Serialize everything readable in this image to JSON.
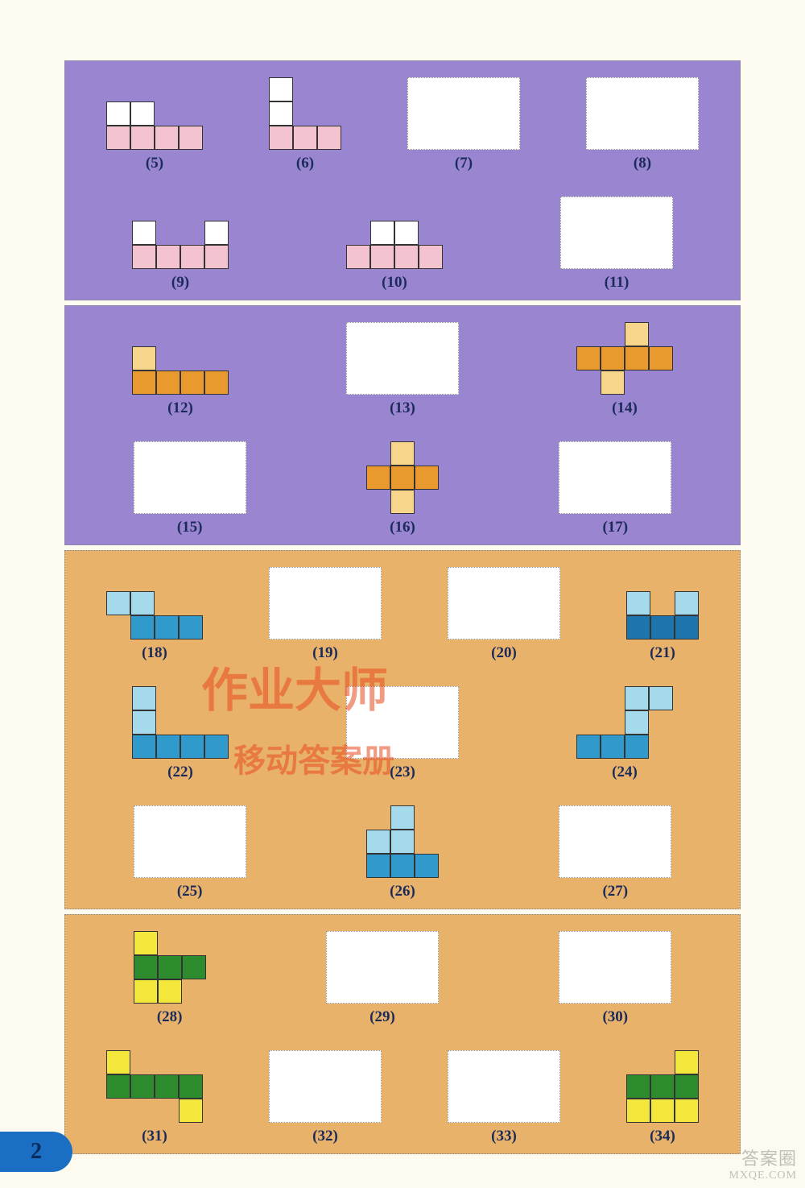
{
  "page_number": "2",
  "watermark": {
    "line1": "作业大师",
    "line2": "移动答案册",
    "color": "#e94b1f",
    "fontsize_main": 58,
    "fontsize_sub": 40
  },
  "corner": {
    "line1": "答案圈",
    "line2": "MXQE.COM"
  },
  "unit": 30,
  "blank_box": {
    "w": 140,
    "h": 90,
    "bg": "#ffffff"
  },
  "colors": {
    "white": "#ffffff",
    "pink": "#f3c3d0",
    "orange": "#e89a2e",
    "orange_light": "#f7d58a",
    "lblue": "#a5d9ec",
    "mblue": "#2f9acb",
    "dblue": "#1e74ad",
    "yellow": "#f2e73a",
    "green": "#2d8c2d"
  },
  "sections": [
    {
      "bg": "#9a86d0",
      "rows": [
        [
          {
            "label": "(5)",
            "unit": 30,
            "w": 4,
            "h": 2,
            "cells": [
              {
                "x": 0,
                "y": 0,
                "c": "white"
              },
              {
                "x": 1,
                "y": 0,
                "c": "white"
              },
              {
                "x": 0,
                "y": 1,
                "c": "pink"
              },
              {
                "x": 1,
                "y": 1,
                "c": "pink"
              },
              {
                "x": 2,
                "y": 1,
                "c": "pink"
              },
              {
                "x": 3,
                "y": 1,
                "c": "pink"
              }
            ]
          },
          {
            "label": "(6)",
            "unit": 30,
            "w": 3,
            "h": 3,
            "cells": [
              {
                "x": 0,
                "y": 0,
                "c": "white"
              },
              {
                "x": 0,
                "y": 1,
                "c": "white"
              },
              {
                "x": 0,
                "y": 2,
                "c": "pink"
              },
              {
                "x": 1,
                "y": 2,
                "c": "pink"
              },
              {
                "x": 2,
                "y": 2,
                "c": "pink"
              }
            ]
          },
          {
            "label": "(7)",
            "blank": true
          },
          {
            "label": "(8)",
            "blank": true
          }
        ],
        [
          {
            "label": "(9)",
            "unit": 30,
            "w": 4,
            "h": 2,
            "cells": [
              {
                "x": 0,
                "y": 0,
                "c": "white"
              },
              {
                "x": 3,
                "y": 0,
                "c": "white"
              },
              {
                "x": 0,
                "y": 1,
                "c": "pink"
              },
              {
                "x": 1,
                "y": 1,
                "c": "pink"
              },
              {
                "x": 2,
                "y": 1,
                "c": "pink"
              },
              {
                "x": 3,
                "y": 1,
                "c": "pink"
              }
            ]
          },
          {
            "label": "(10)",
            "unit": 30,
            "w": 4,
            "h": 2,
            "cells": [
              {
                "x": 1,
                "y": 0,
                "c": "white"
              },
              {
                "x": 2,
                "y": 0,
                "c": "white"
              },
              {
                "x": 0,
                "y": 1,
                "c": "pink"
              },
              {
                "x": 1,
                "y": 1,
                "c": "pink"
              },
              {
                "x": 2,
                "y": 1,
                "c": "pink"
              },
              {
                "x": 3,
                "y": 1,
                "c": "pink"
              }
            ]
          },
          {
            "label": "(11)",
            "blank": true
          }
        ]
      ]
    },
    {
      "bg": "#9a86d0",
      "rows": [
        [
          {
            "label": "(12)",
            "unit": 30,
            "w": 4,
            "h": 2,
            "cells": [
              {
                "x": 0,
                "y": 0,
                "c": "orange_light"
              },
              {
                "x": 0,
                "y": 1,
                "c": "orange"
              },
              {
                "x": 1,
                "y": 1,
                "c": "orange"
              },
              {
                "x": 2,
                "y": 1,
                "c": "orange"
              },
              {
                "x": 3,
                "y": 1,
                "c": "orange"
              }
            ]
          },
          {
            "label": "(13)",
            "blank": true
          },
          {
            "label": "(14)",
            "unit": 30,
            "w": 4,
            "h": 3,
            "cells": [
              {
                "x": 2,
                "y": 0,
                "c": "orange_light"
              },
              {
                "x": 0,
                "y": 1,
                "c": "orange"
              },
              {
                "x": 1,
                "y": 1,
                "c": "orange"
              },
              {
                "x": 2,
                "y": 1,
                "c": "orange"
              },
              {
                "x": 3,
                "y": 1,
                "c": "orange"
              },
              {
                "x": 1,
                "y": 2,
                "c": "orange_light"
              }
            ]
          }
        ],
        [
          {
            "label": "(15)",
            "blank": true
          },
          {
            "label": "(16)",
            "unit": 30,
            "w": 3,
            "h": 3,
            "cells": [
              {
                "x": 1,
                "y": 0,
                "c": "orange_light"
              },
              {
                "x": 0,
                "y": 1,
                "c": "orange"
              },
              {
                "x": 1,
                "y": 1,
                "c": "orange"
              },
              {
                "x": 2,
                "y": 1,
                "c": "orange"
              },
              {
                "x": 1,
                "y": 2,
                "c": "orange_light"
              }
            ]
          },
          {
            "label": "(17)",
            "blank": true
          }
        ]
      ]
    },
    {
      "bg": "#e8b26a",
      "rows": [
        [
          {
            "label": "(18)",
            "unit": 30,
            "w": 4,
            "h": 2,
            "cells": [
              {
                "x": 0,
                "y": 0,
                "c": "lblue"
              },
              {
                "x": 1,
                "y": 0,
                "c": "lblue"
              },
              {
                "x": 1,
                "y": 1,
                "c": "mblue"
              },
              {
                "x": 2,
                "y": 1,
                "c": "mblue"
              },
              {
                "x": 3,
                "y": 1,
                "c": "mblue"
              }
            ]
          },
          {
            "label": "(19)",
            "blank": true
          },
          {
            "label": "(20)",
            "blank": true
          },
          {
            "label": "(21)",
            "unit": 30,
            "w": 3,
            "h": 2,
            "cells": [
              {
                "x": 0,
                "y": 0,
                "c": "lblue"
              },
              {
                "x": 2,
                "y": 0,
                "c": "lblue"
              },
              {
                "x": 0,
                "y": 1,
                "c": "dblue"
              },
              {
                "x": 1,
                "y": 1,
                "c": "dblue"
              },
              {
                "x": 2,
                "y": 1,
                "c": "dblue"
              }
            ]
          }
        ],
        [
          {
            "label": "(22)",
            "unit": 30,
            "w": 4,
            "h": 3,
            "cells": [
              {
                "x": 0,
                "y": 0,
                "c": "lblue"
              },
              {
                "x": 0,
                "y": 1,
                "c": "lblue"
              },
              {
                "x": 0,
                "y": 2,
                "c": "mblue"
              },
              {
                "x": 1,
                "y": 2,
                "c": "mblue"
              },
              {
                "x": 2,
                "y": 2,
                "c": "mblue"
              },
              {
                "x": 3,
                "y": 2,
                "c": "mblue"
              }
            ]
          },
          {
            "label": "(23)",
            "blank": true
          },
          {
            "label": "(24)",
            "unit": 30,
            "w": 4,
            "h": 3,
            "cells": [
              {
                "x": 2,
                "y": 0,
                "c": "lblue"
              },
              {
                "x": 3,
                "y": 0,
                "c": "lblue"
              },
              {
                "x": 2,
                "y": 1,
                "c": "lblue"
              },
              {
                "x": 0,
                "y": 2,
                "c": "mblue"
              },
              {
                "x": 1,
                "y": 2,
                "c": "mblue"
              },
              {
                "x": 2,
                "y": 2,
                "c": "mblue"
              }
            ]
          }
        ],
        [
          {
            "label": "(25)",
            "blank": true
          },
          {
            "label": "(26)",
            "unit": 30,
            "w": 3,
            "h": 3,
            "cells": [
              {
                "x": 1,
                "y": 0,
                "c": "lblue"
              },
              {
                "x": 0,
                "y": 1,
                "c": "lblue"
              },
              {
                "x": 1,
                "y": 1,
                "c": "lblue"
              },
              {
                "x": 0,
                "y": 2,
                "c": "mblue"
              },
              {
                "x": 1,
                "y": 2,
                "c": "mblue"
              },
              {
                "x": 2,
                "y": 2,
                "c": "mblue"
              }
            ]
          },
          {
            "label": "(27)",
            "blank": true
          }
        ]
      ]
    },
    {
      "bg": "#e8b26a",
      "rows": [
        [
          {
            "label": "(28)",
            "unit": 30,
            "w": 3,
            "h": 3,
            "cells": [
              {
                "x": 0,
                "y": 0,
                "c": "yellow"
              },
              {
                "x": 0,
                "y": 1,
                "c": "green"
              },
              {
                "x": 1,
                "y": 1,
                "c": "green"
              },
              {
                "x": 2,
                "y": 1,
                "c": "green"
              },
              {
                "x": 0,
                "y": 2,
                "c": "yellow"
              },
              {
                "x": 1,
                "y": 2,
                "c": "yellow"
              }
            ]
          },
          {
            "label": "(29)",
            "blank": true
          },
          {
            "label": "(30)",
            "blank": true
          }
        ],
        [
          {
            "label": "(31)",
            "unit": 30,
            "w": 4,
            "h": 3,
            "cells": [
              {
                "x": 0,
                "y": 0,
                "c": "yellow"
              },
              {
                "x": 0,
                "y": 1,
                "c": "green"
              },
              {
                "x": 1,
                "y": 1,
                "c": "green"
              },
              {
                "x": 2,
                "y": 1,
                "c": "green"
              },
              {
                "x": 3,
                "y": 1,
                "c": "green"
              },
              {
                "x": 3,
                "y": 2,
                "c": "yellow"
              }
            ]
          },
          {
            "label": "(32)",
            "blank": true
          },
          {
            "label": "(33)",
            "blank": true
          },
          {
            "label": "(34)",
            "unit": 30,
            "w": 3,
            "h": 3,
            "cells": [
              {
                "x": 2,
                "y": 0,
                "c": "yellow"
              },
              {
                "x": 0,
                "y": 1,
                "c": "green"
              },
              {
                "x": 1,
                "y": 1,
                "c": "green"
              },
              {
                "x": 2,
                "y": 1,
                "c": "green"
              },
              {
                "x": 0,
                "y": 2,
                "c": "yellow"
              },
              {
                "x": 1,
                "y": 2,
                "c": "yellow"
              },
              {
                "x": 2,
                "y": 2,
                "c": "yellow"
              }
            ]
          }
        ]
      ]
    }
  ]
}
